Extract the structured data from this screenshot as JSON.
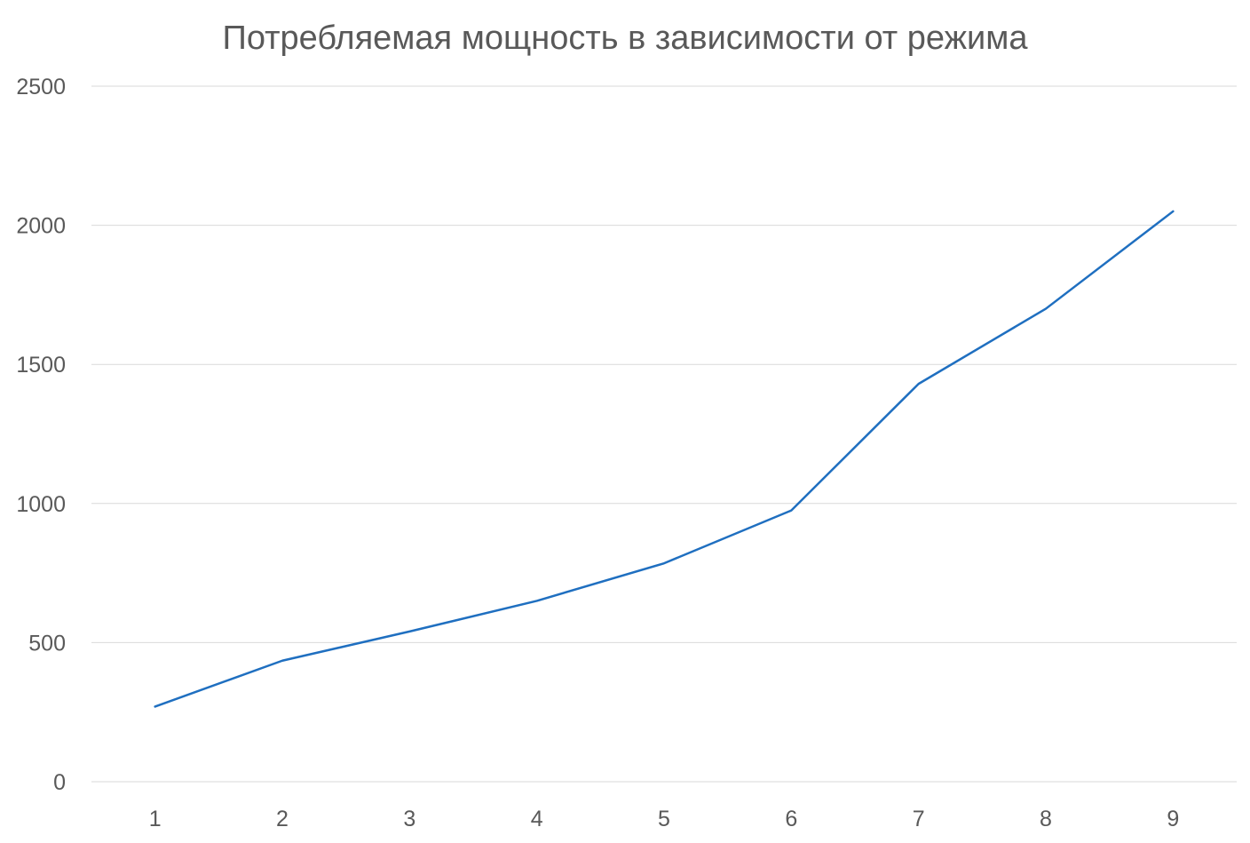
{
  "chart_data": {
    "type": "line",
    "title": "Потребляемая мощность в зависимости от режима",
    "xlabel": "",
    "ylabel": "",
    "categories": [
      "1",
      "2",
      "3",
      "4",
      "5",
      "6",
      "7",
      "8",
      "9"
    ],
    "series": [
      {
        "values": [
          270,
          435,
          540,
          650,
          785,
          975,
          1430,
          1700,
          2050
        ],
        "color": "#1f6fc0"
      }
    ],
    "ylim": [
      0,
      2500
    ],
    "yticks": [
      0,
      500,
      1000,
      1500,
      2000,
      2500
    ],
    "grid": "horizontal",
    "legend": "none",
    "colors": {
      "gridline": "#d9d9d9",
      "text": "#595959"
    }
  }
}
